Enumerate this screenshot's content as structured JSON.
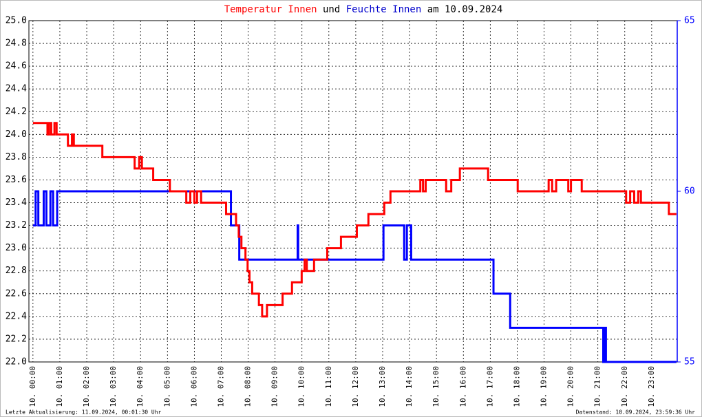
{
  "chart_data": {
    "type": "line",
    "title": {
      "connector": "und",
      "suffix": "am 10.09.2024"
    },
    "footer_left": "Letzte Aktualisierung: 11.09.2024, 00:01:30 Uhr",
    "footer_right": "Datenstand: 10.09.2024, 23:59:36 Uhr",
    "step": "post",
    "grid": true,
    "xlim": [
      -0.15,
      23.95
    ],
    "xticks": [
      {
        "value": 0,
        "label": "10. 00:00"
      },
      {
        "value": 1,
        "label": "10. 01:00"
      },
      {
        "value": 2,
        "label": "10. 02:00"
      },
      {
        "value": 3,
        "label": "10. 03:00"
      },
      {
        "value": 4,
        "label": "10. 04:00"
      },
      {
        "value": 5,
        "label": "10. 05:00"
      },
      {
        "value": 6,
        "label": "10. 06:00"
      },
      {
        "value": 7,
        "label": "10. 07:00"
      },
      {
        "value": 8,
        "label": "10. 08:00"
      },
      {
        "value": 9,
        "label": "10. 09:00"
      },
      {
        "value": 10,
        "label": "10. 10:00"
      },
      {
        "value": 11,
        "label": "10. 11:00"
      },
      {
        "value": 12,
        "label": "10. 12:00"
      },
      {
        "value": 13,
        "label": "10. 13:00"
      },
      {
        "value": 14,
        "label": "10. 14:00"
      },
      {
        "value": 15,
        "label": "10. 15:00"
      },
      {
        "value": 16,
        "label": "10. 16:00"
      },
      {
        "value": 17,
        "label": "10. 17:00"
      },
      {
        "value": 18,
        "label": "10. 18:00"
      },
      {
        "value": 19,
        "label": "10. 19:00"
      },
      {
        "value": 20,
        "label": "10. 20:00"
      },
      {
        "value": 21,
        "label": "10. 21:00"
      },
      {
        "value": 22,
        "label": "10. 22:00"
      },
      {
        "value": 23,
        "label": "10. 23:00"
      }
    ],
    "ylim": [
      22,
      25
    ],
    "yticks": [
      {
        "value": 22,
        "label": "22.0"
      },
      {
        "value": 22.2,
        "label": "22.2"
      },
      {
        "value": 22.4,
        "label": "22.4"
      },
      {
        "value": 22.6,
        "label": "22.6"
      },
      {
        "value": 22.8,
        "label": "22.8"
      },
      {
        "value": 23,
        "label": "23.0"
      },
      {
        "value": 23.2,
        "label": "23.2"
      },
      {
        "value": 23.4,
        "label": "23.4"
      },
      {
        "value": 23.6,
        "label": "23.6"
      },
      {
        "value": 23.8,
        "label": "23.8"
      },
      {
        "value": 24,
        "label": "24.0"
      },
      {
        "value": 24.2,
        "label": "24.2"
      },
      {
        "value": 24.4,
        "label": "24.4"
      },
      {
        "value": 24.6,
        "label": "24.6"
      },
      {
        "value": 24.8,
        "label": "24.8"
      },
      {
        "value": 25,
        "label": "25.0"
      }
    ],
    "y2lim": [
      55,
      65
    ],
    "y2ticks": [
      55,
      60,
      65
    ],
    "y2color": "#0000ff",
    "series": [
      {
        "name": "Temperatur Innen",
        "color": "#ff0000",
        "x": [
          0,
          0.54,
          0.6,
          0.68,
          0.8,
          0.88,
          1.3,
          1.45,
          1.52,
          2.58,
          3.78,
          3.95,
          4.05,
          4.47,
          5.09,
          5.7,
          5.85,
          6.0,
          6.1,
          6.25,
          7.18,
          7.55,
          7.65,
          7.75,
          7.9,
          7.98,
          8.05,
          8.15,
          8.4,
          8.52,
          8.7,
          9.28,
          9.63,
          9.99,
          10.1,
          10.18,
          10.45,
          10.94,
          11.45,
          12.04,
          12.47,
          13.06,
          13.29,
          14.4,
          14.5,
          14.6,
          15.36,
          15.55,
          15.87,
          16.92,
          18.02,
          19.17,
          19.3,
          19.45,
          19.9,
          20.0,
          20.4,
          22.05,
          22.2,
          22.35,
          22.5,
          22.6,
          23.64,
          23.92
        ],
        "values": [
          24.1,
          24.0,
          24.1,
          24.0,
          24.1,
          24.0,
          23.9,
          24.0,
          23.9,
          23.8,
          23.7,
          23.8,
          23.7,
          23.6,
          23.5,
          23.4,
          23.5,
          23.4,
          23.5,
          23.4,
          23.3,
          23.2,
          23.1,
          23.0,
          22.9,
          22.8,
          22.7,
          22.6,
          22.5,
          22.4,
          22.5,
          22.6,
          22.7,
          22.8,
          22.9,
          22.8,
          22.9,
          23.0,
          23.1,
          23.2,
          23.3,
          23.4,
          23.5,
          23.6,
          23.5,
          23.6,
          23.5,
          23.6,
          23.7,
          23.6,
          23.5,
          23.6,
          23.5,
          23.6,
          23.5,
          23.6,
          23.5,
          23.4,
          23.5,
          23.4,
          23.5,
          23.4,
          23.3,
          23.3
        ]
      },
      {
        "name": "Feuchte Innen",
        "color": "#0000ff",
        "axis": "y2",
        "x": [
          0,
          0.1,
          0.2,
          0.4,
          0.5,
          0.65,
          0.75,
          0.9,
          7.36,
          7.67,
          9.84,
          9.86,
          13.03,
          13.8,
          13.9,
          14.06,
          17.12,
          17.74,
          21.2,
          21.25,
          21.3,
          23.92
        ],
        "values": [
          59,
          60,
          59,
          60,
          59,
          60,
          59,
          60,
          59,
          58,
          59,
          58,
          59,
          58,
          59,
          58,
          57,
          56,
          55,
          56,
          55,
          55
        ]
      }
    ]
  }
}
